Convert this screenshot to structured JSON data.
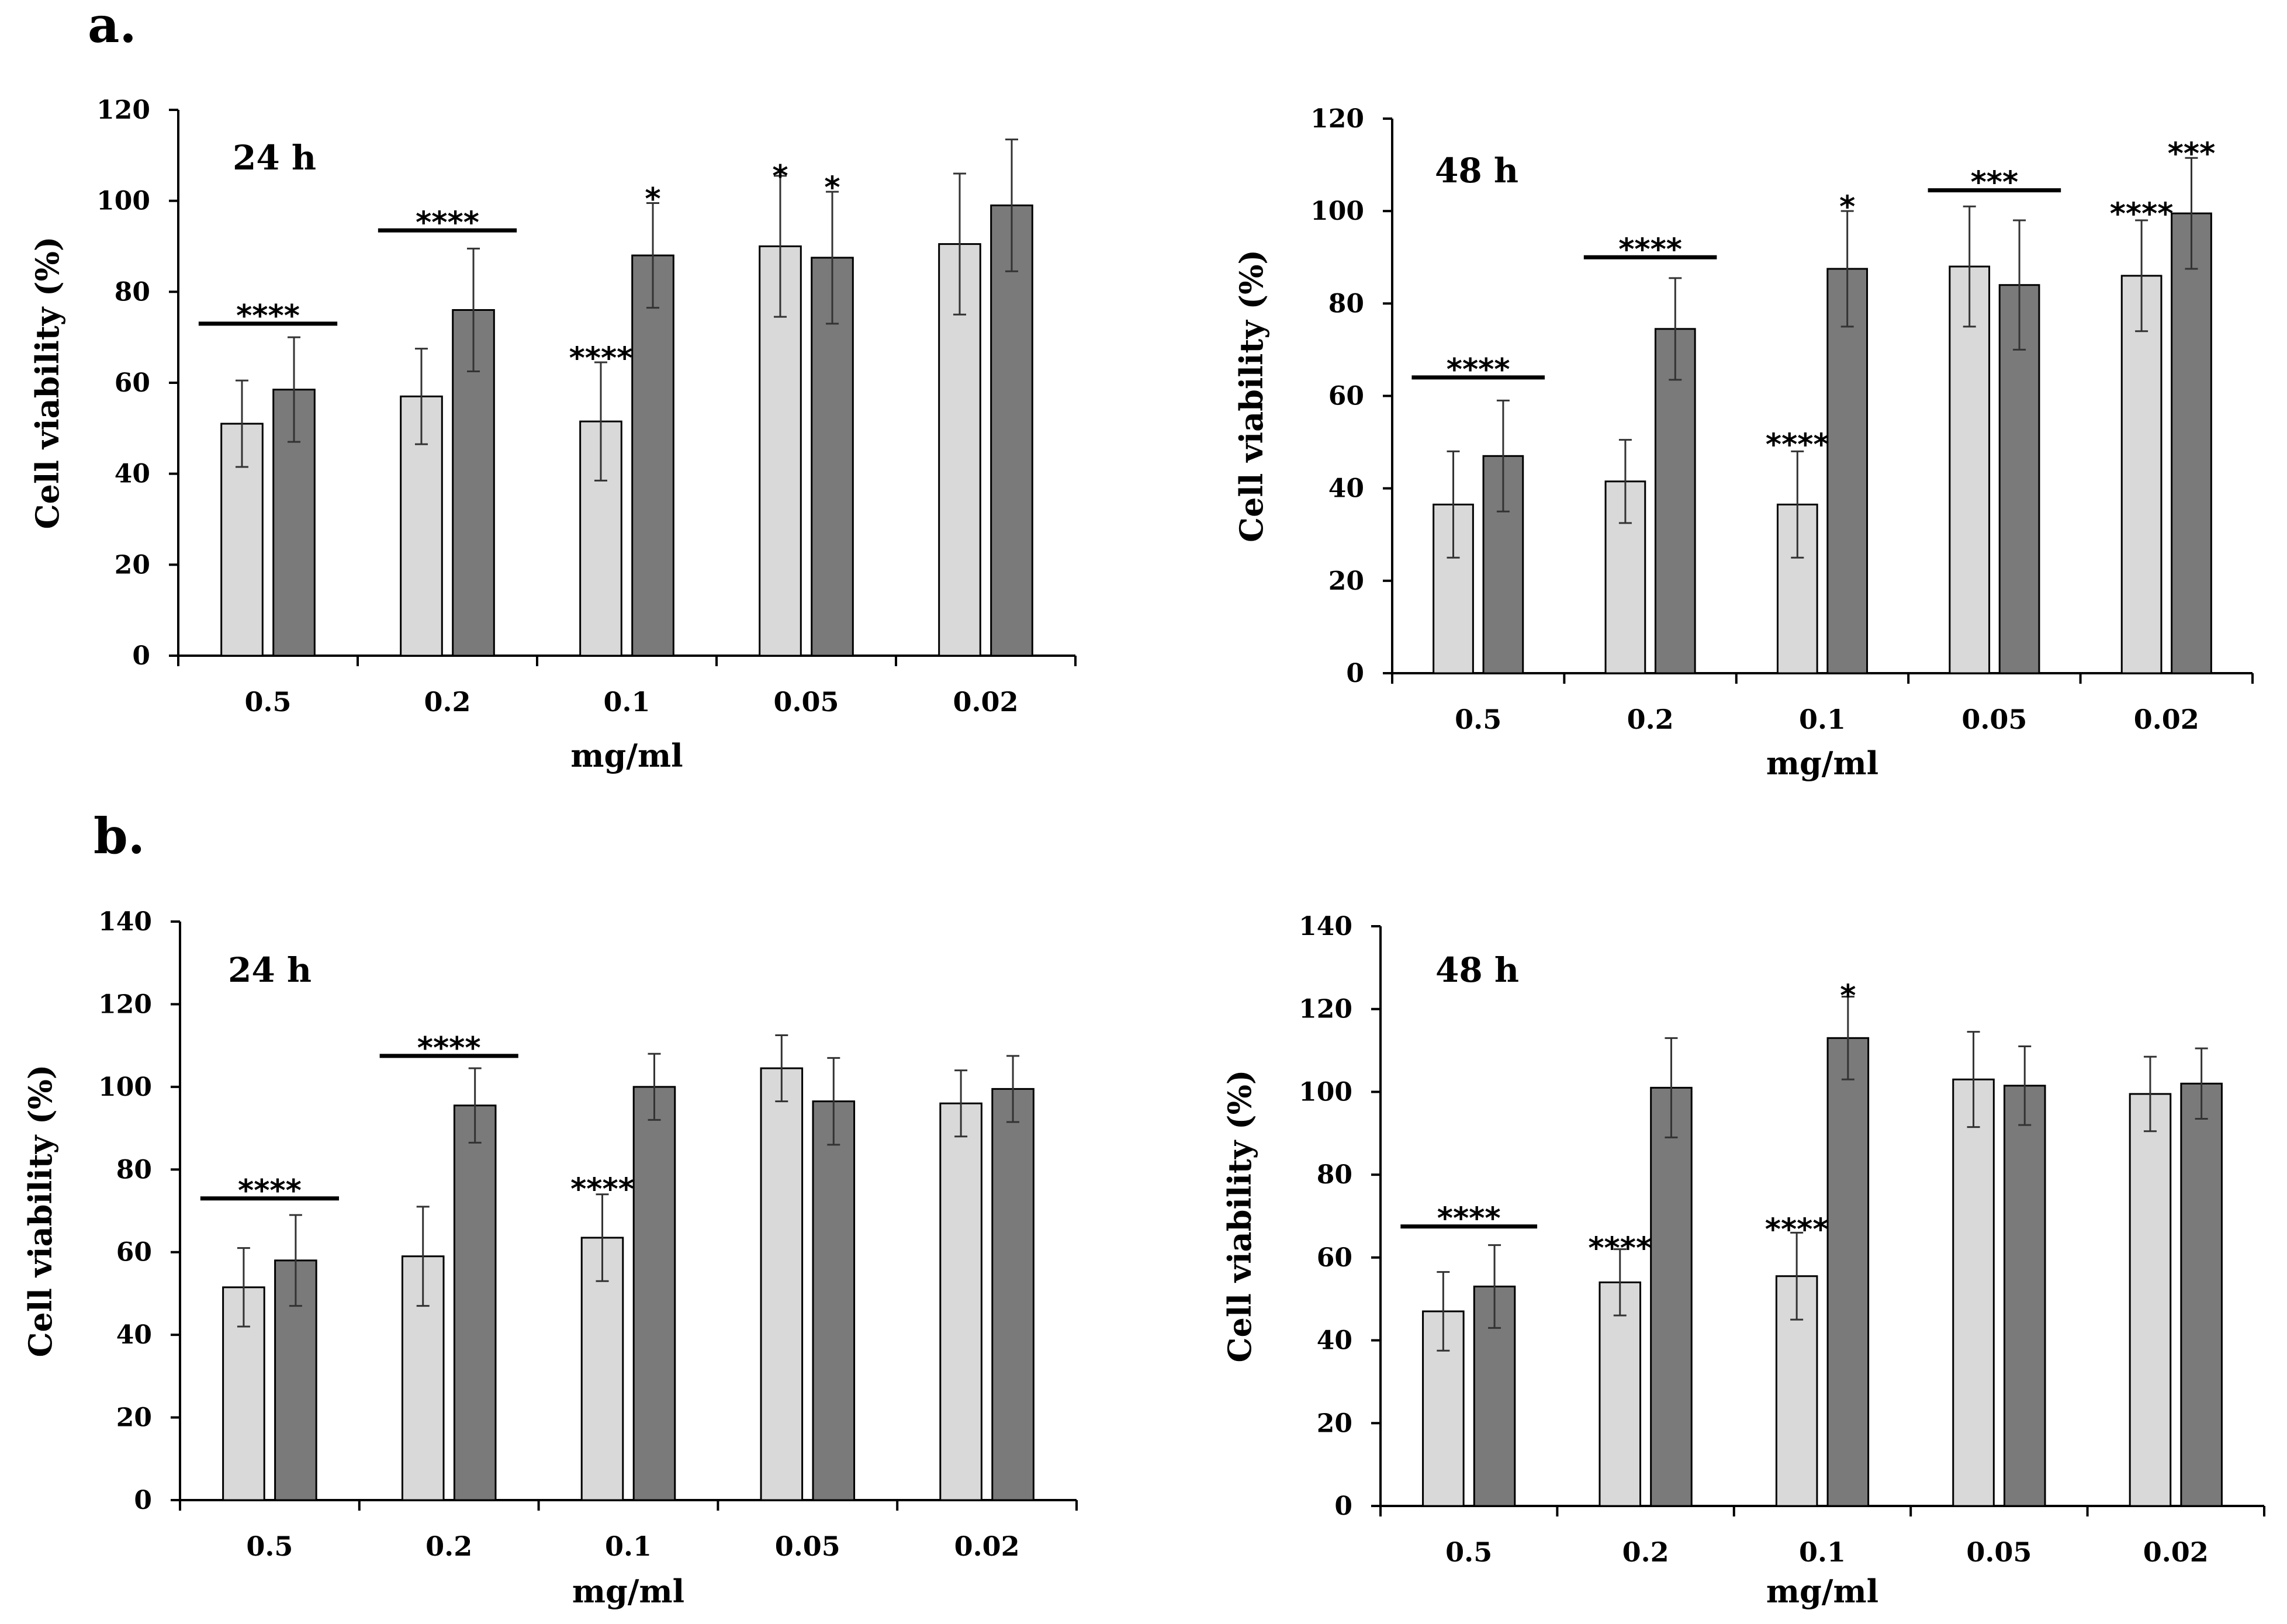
{
  "panel_labels": [
    "a.",
    "b."
  ],
  "colors": {
    "light": "#d9d9d9",
    "dark": "#7a7a7a",
    "axis": "#000000",
    "error": "#333333"
  },
  "chart_data": [
    {
      "type": "bar",
      "panel": "a",
      "title": "24 h",
      "xlabel": "mg/ml",
      "ylabel": "Cell viability (%)",
      "ylim": [
        0,
        120
      ],
      "yticks": [
        0,
        20,
        40,
        60,
        80,
        100,
        120
      ],
      "categories": [
        "0.5",
        "0.2",
        "0.1",
        "0.05",
        "0.02"
      ],
      "series": [
        {
          "name": "light",
          "values": [
            51,
            57,
            51.5,
            90,
            90.5
          ],
          "errors": [
            9.5,
            10.5,
            13,
            15.5,
            15.5
          ]
        },
        {
          "name": "dark",
          "values": [
            58.5,
            76,
            88,
            87.5,
            99
          ],
          "errors": [
            11.5,
            13.5,
            11.5,
            14.5,
            14.5
          ]
        }
      ],
      "annotations": [
        {
          "text": "****",
          "category": 0,
          "bracket": true,
          "value": 73
        },
        {
          "text": "****",
          "category": 1,
          "bracket": true,
          "value": 93.5
        },
        {
          "text": "****",
          "category": 2,
          "series": 0,
          "value": 67
        },
        {
          "text": "*",
          "category": 2,
          "series": 1,
          "value": 102
        },
        {
          "text": "*",
          "category": 3,
          "series": 0,
          "value": 107
        },
        {
          "text": "*",
          "category": 3,
          "series": 1,
          "value": 104.5
        }
      ]
    },
    {
      "type": "bar",
      "panel": "a",
      "title": "48 h",
      "xlabel": "mg/ml",
      "ylabel": "Cell viability (%)",
      "ylim": [
        0,
        120
      ],
      "yticks": [
        0,
        20,
        40,
        60,
        80,
        100,
        120
      ],
      "categories": [
        "0.5",
        "0.2",
        "0.1",
        "0.05",
        "0.02"
      ],
      "series": [
        {
          "name": "light",
          "values": [
            36.5,
            41.5,
            36.5,
            88,
            86
          ],
          "errors": [
            11.5,
            9,
            11.5,
            13,
            12
          ]
        },
        {
          "name": "dark",
          "values": [
            47,
            74.5,
            87.5,
            84,
            99.5
          ],
          "errors": [
            12,
            11,
            12.5,
            14,
            12
          ]
        }
      ],
      "annotations": [
        {
          "text": "****",
          "category": 0,
          "bracket": true,
          "value": 64
        },
        {
          "text": "****",
          "category": 1,
          "bracket": true,
          "value": 90
        },
        {
          "text": "****",
          "category": 2,
          "series": 0,
          "value": 51
        },
        {
          "text": "*",
          "category": 2,
          "series": 1,
          "value": 102.5
        },
        {
          "text": "***",
          "category": 3,
          "bracket": true,
          "value": 104.5
        },
        {
          "text": "****",
          "category": 4,
          "series": 0,
          "value": 101
        },
        {
          "text": "***",
          "category": 4,
          "series": 1,
          "value": 114
        }
      ]
    },
    {
      "type": "bar",
      "panel": "b",
      "title": "24 h",
      "xlabel": "mg/ml",
      "ylabel": "Cell viability (%)",
      "ylim": [
        0,
        140
      ],
      "yticks": [
        0,
        20,
        40,
        60,
        80,
        100,
        120,
        140
      ],
      "categories": [
        "0.5",
        "0.2",
        "0.1",
        "0.05",
        "0.02"
      ],
      "series": [
        {
          "name": "light",
          "values": [
            51.5,
            59,
            63.5,
            104.5,
            96
          ],
          "errors": [
            9.5,
            12,
            10.5,
            8,
            8
          ]
        },
        {
          "name": "dark",
          "values": [
            58,
            95.5,
            100,
            96.5,
            99.5
          ],
          "errors": [
            11,
            9,
            8,
            10.5,
            8
          ]
        }
      ],
      "annotations": [
        {
          "text": "****",
          "category": 0,
          "bracket": true,
          "value": 73
        },
        {
          "text": "****",
          "category": 1,
          "bracket": true,
          "value": 107.5
        },
        {
          "text": "****",
          "category": 2,
          "series": 0,
          "value": 77
        }
      ]
    },
    {
      "type": "bar",
      "panel": "b",
      "title": "48 h",
      "xlabel": "mg/ml",
      "ylabel": "Cell viability (%)",
      "ylim": [
        0,
        140
      ],
      "yticks": [
        0,
        20,
        40,
        60,
        80,
        100,
        120,
        140
      ],
      "categories": [
        "0.5",
        "0.2",
        "0.1",
        "0.05",
        "0.02"
      ],
      "series": [
        {
          "name": "light",
          "values": [
            47,
            54,
            55.5,
            103,
            99.5
          ],
          "errors": [
            9.5,
            8,
            10.5,
            11.5,
            9
          ]
        },
        {
          "name": "dark",
          "values": [
            53,
            101,
            113,
            101.5,
            102
          ],
          "errors": [
            10,
            12,
            10,
            9.5,
            8.5
          ]
        }
      ],
      "annotations": [
        {
          "text": "****",
          "category": 0,
          "bracket": true,
          "value": 67.5
        },
        {
          "text": "****",
          "category": 1,
          "series": 0,
          "value": 64
        },
        {
          "text": "****",
          "category": 2,
          "series": 0,
          "value": 68.5
        },
        {
          "text": "*",
          "category": 2,
          "series": 1,
          "value": 125
        }
      ]
    }
  ]
}
